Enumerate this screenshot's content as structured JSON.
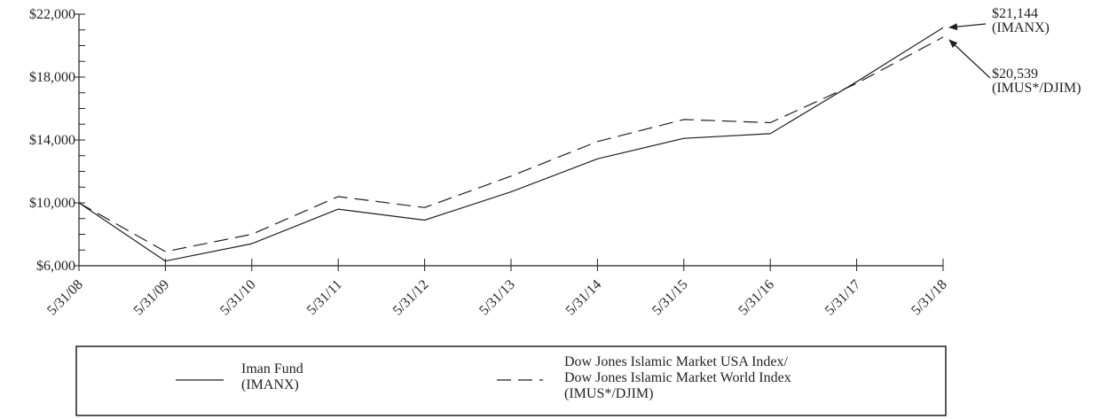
{
  "chart_data": {
    "type": "line",
    "x": [
      "5/31/08",
      "5/31/09",
      "5/31/10",
      "5/31/11",
      "5/31/12",
      "5/31/13",
      "5/31/14",
      "5/31/15",
      "5/31/16",
      "5/31/17",
      "5/31/18"
    ],
    "y_ticks": [
      "$6,000",
      "$10,000",
      "$14,000",
      "$18,000",
      "$22,000"
    ],
    "ylim": [
      6000,
      22000
    ],
    "grid": false,
    "legend_position": "bottom",
    "series": [
      {
        "name_lines": [
          "Iman Fund",
          "(IMANX)"
        ],
        "style": "solid",
        "color": "#231f20",
        "values": [
          10000,
          6300,
          7400,
          9600,
          8900,
          10700,
          12800,
          14100,
          14400,
          17700,
          21144
        ]
      },
      {
        "name_lines": [
          "Dow Jones Islamic Market USA Index/",
          "Dow Jones Islamic Market World Index",
          "(IMUS*/DJIM)"
        ],
        "style": "dashed",
        "color": "#231f20",
        "values": [
          10000,
          6900,
          8000,
          10400,
          9700,
          11700,
          13900,
          15300,
          15100,
          17600,
          20539
        ]
      }
    ],
    "annotations": [
      {
        "series": 0,
        "lines": [
          "$21,144",
          "(IMANX)"
        ]
      },
      {
        "series": 1,
        "lines": [
          "$20,539",
          "(IMUS*/DJIM)"
        ]
      }
    ]
  }
}
